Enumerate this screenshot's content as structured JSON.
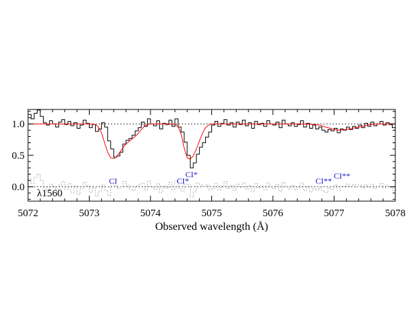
{
  "chart_data": {
    "type": "line",
    "xlabel": "Observed wavelength (Å)",
    "xlim": [
      5072,
      5078
    ],
    "ylim": [
      -0.23,
      1.23
    ],
    "xticks": [
      5072,
      5073,
      5074,
      5075,
      5076,
      5077,
      5078
    ],
    "yticks": [
      0.0,
      0.5,
      1.0
    ],
    "ytick_labels": [
      "0.0",
      "0.5",
      "1.0"
    ],
    "transition_label": "λ1560",
    "annotations": [
      {
        "text": "CI",
        "x": 5073.39,
        "y": 0.05
      },
      {
        "text": "CI*",
        "x": 5074.53,
        "y": 0.05
      },
      {
        "text": "CI*",
        "x": 5074.67,
        "y": 0.15
      },
      {
        "text": "CI**",
        "x": 5076.83,
        "y": 0.05
      },
      {
        "text": "CI**",
        "x": 5077.13,
        "y": 0.13
      }
    ],
    "series": [
      {
        "style": "histogram",
        "color": "#000000",
        "x": [
          5072.0,
          5072.05,
          5072.1,
          5072.15,
          5072.2,
          5072.25,
          5072.3,
          5072.35,
          5072.4,
          5072.45,
          5072.5,
          5072.55,
          5072.6,
          5072.65,
          5072.7,
          5072.75,
          5072.8,
          5072.85,
          5072.9,
          5072.95,
          5073.0,
          5073.05,
          5073.1,
          5073.15,
          5073.2,
          5073.25,
          5073.3,
          5073.35,
          5073.4,
          5073.45,
          5073.5,
          5073.55,
          5073.6,
          5073.65,
          5073.7,
          5073.75,
          5073.8,
          5073.85,
          5073.9,
          5073.95,
          5074.0,
          5074.05,
          5074.1,
          5074.15,
          5074.2,
          5074.25,
          5074.3,
          5074.35,
          5074.4,
          5074.45,
          5074.5,
          5074.55,
          5074.6,
          5074.65,
          5074.7,
          5074.75,
          5074.8,
          5074.85,
          5074.9,
          5074.95,
          5075.0,
          5075.05,
          5075.1,
          5075.15,
          5075.2,
          5075.25,
          5075.3,
          5075.35,
          5075.4,
          5075.45,
          5075.5,
          5075.55,
          5075.6,
          5075.65,
          5075.7,
          5075.75,
          5075.8,
          5075.85,
          5075.9,
          5075.95,
          5076.0,
          5076.05,
          5076.1,
          5076.15,
          5076.2,
          5076.25,
          5076.3,
          5076.35,
          5076.4,
          5076.45,
          5076.5,
          5076.55,
          5076.6,
          5076.65,
          5076.7,
          5076.75,
          5076.8,
          5076.85,
          5076.9,
          5076.95,
          5077.0,
          5077.05,
          5077.1,
          5077.15,
          5077.2,
          5077.25,
          5077.3,
          5077.35,
          5077.4,
          5077.45,
          5077.5,
          5077.55,
          5077.6,
          5077.65,
          5077.7,
          5077.75,
          5077.8,
          5077.85,
          5077.9,
          5077.95
        ],
        "y": [
          1.15,
          1.08,
          1.17,
          1.22,
          1.12,
          1.02,
          0.98,
          1.05,
          1.0,
          0.95,
          1.03,
          1.07,
          0.99,
          1.04,
          0.97,
          1.02,
          0.93,
          0.98,
          1.06,
          1.01,
          0.94,
          0.99,
          0.88,
          0.92,
          1.02,
          0.95,
          0.73,
          0.6,
          0.47,
          0.49,
          0.55,
          0.68,
          0.74,
          0.77,
          0.82,
          0.89,
          0.94,
          1.03,
          0.96,
          1.08,
          1.0,
          0.97,
          1.05,
          0.92,
          1.01,
          0.99,
          1.06,
          0.96,
          1.08,
          0.95,
          0.87,
          0.71,
          0.5,
          0.3,
          0.38,
          0.52,
          0.63,
          0.7,
          0.79,
          0.87,
          0.98,
          1.04,
          0.96,
          1.01,
          1.07,
          0.98,
          1.02,
          0.95,
          1.03,
          0.99,
          1.06,
          0.97,
          1.02,
          0.93,
          1.04,
          0.99,
          1.01,
          0.96,
          1.05,
          1.0,
          0.98,
          1.03,
          0.94,
          1.06,
          1.0,
          0.97,
          1.02,
          0.96,
          0.99,
          1.05,
          0.95,
          1.01,
          0.93,
          0.98,
          0.92,
          0.95,
          0.9,
          0.87,
          0.91,
          0.89,
          0.93,
          0.86,
          0.92,
          0.9,
          0.95,
          0.91,
          0.96,
          0.93,
          0.98,
          0.94,
          1.01,
          0.96,
          1.03,
          0.97,
          1.0,
          1.04,
          0.98,
          1.02,
          0.99,
          0.94
        ]
      },
      {
        "style": "line",
        "color": "#ff0000",
        "x": [
          5072.0,
          5072.2,
          5072.4,
          5072.6,
          5072.8,
          5073.0,
          5073.1,
          5073.15,
          5073.2,
          5073.25,
          5073.3,
          5073.35,
          5073.4,
          5073.45,
          5073.5,
          5073.55,
          5073.6,
          5073.65,
          5073.7,
          5073.75,
          5073.8,
          5073.85,
          5073.9,
          5073.95,
          5074.0,
          5074.1,
          5074.2,
          5074.3,
          5074.4,
          5074.45,
          5074.5,
          5074.55,
          5074.6,
          5074.65,
          5074.7,
          5074.75,
          5074.8,
          5074.85,
          5074.9,
          5074.95,
          5075.0,
          5075.2,
          5075.5,
          5076.0,
          5076.5,
          5076.7,
          5076.8,
          5076.9,
          5077.0,
          5077.1,
          5077.2,
          5077.3,
          5077.4,
          5077.5,
          5077.6,
          5077.7,
          5077.8,
          5078.0
        ],
        "y": [
          1.0,
          1.0,
          1.0,
          1.0,
          1.0,
          1.0,
          0.99,
          0.95,
          0.86,
          0.7,
          0.55,
          0.46,
          0.45,
          0.48,
          0.55,
          0.62,
          0.68,
          0.72,
          0.76,
          0.8,
          0.85,
          0.91,
          0.96,
          0.99,
          1.0,
          1.0,
          1.0,
          1.0,
          0.99,
          0.96,
          0.84,
          0.62,
          0.46,
          0.44,
          0.49,
          0.6,
          0.73,
          0.85,
          0.94,
          0.98,
          1.0,
          1.0,
          1.0,
          1.0,
          1.0,
          0.99,
          0.97,
          0.94,
          0.91,
          0.9,
          0.91,
          0.93,
          0.95,
          0.97,
          0.99,
          1.0,
          1.0,
          1.0
        ]
      },
      {
        "style": "histogram",
        "color": "#999999",
        "dashed": true,
        "x": [
          5072.0,
          5072.05,
          5072.1,
          5072.15,
          5072.2,
          5072.25,
          5072.3,
          5072.35,
          5072.4,
          5072.45,
          5072.5,
          5072.55,
          5072.6,
          5072.65,
          5072.7,
          5072.75,
          5072.8,
          5072.85,
          5072.9,
          5072.95,
          5073.0,
          5073.05,
          5073.1,
          5073.15,
          5073.2,
          5073.25,
          5073.3,
          5073.35,
          5073.4,
          5073.45,
          5073.5,
          5073.55,
          5073.6,
          5073.65,
          5073.7,
          5073.75,
          5073.8,
          5073.85,
          5073.9,
          5073.95,
          5074.0,
          5074.05,
          5074.1,
          5074.15,
          5074.2,
          5074.25,
          5074.3,
          5074.35,
          5074.4,
          5074.45,
          5074.5,
          5074.55,
          5074.6,
          5074.65,
          5074.7,
          5074.75,
          5074.8,
          5074.85,
          5074.9,
          5074.95,
          5075.0,
          5075.05,
          5075.1,
          5075.15,
          5075.2,
          5075.25,
          5075.3,
          5075.35,
          5075.4,
          5075.45,
          5075.5,
          5075.55,
          5075.6,
          5075.65,
          5075.7,
          5075.75,
          5075.8,
          5075.85,
          5075.9,
          5075.95,
          5076.0,
          5076.05,
          5076.1,
          5076.15,
          5076.2,
          5076.25,
          5076.3,
          5076.35,
          5076.4,
          5076.45,
          5076.5,
          5076.55,
          5076.6,
          5076.65,
          5076.7,
          5076.75,
          5076.8,
          5076.85,
          5076.9,
          5076.95,
          5077.0,
          5077.05,
          5077.1,
          5077.15,
          5077.2,
          5077.25,
          5077.3,
          5077.35,
          5077.4,
          5077.45,
          5077.5,
          5077.55,
          5077.6,
          5077.65,
          5077.7,
          5077.75,
          5077.8,
          5077.85,
          5077.9,
          5077.95
        ],
        "y": [
          0.12,
          0.05,
          0.15,
          0.2,
          0.1,
          -0.02,
          -0.06,
          0.04,
          0.0,
          -0.08,
          0.03,
          0.08,
          -0.04,
          0.05,
          -0.1,
          0.02,
          -0.12,
          -0.03,
          0.07,
          0.01,
          -0.09,
          -0.02,
          -0.15,
          -0.07,
          0.03,
          -0.06,
          -0.14,
          0.05,
          0.02,
          -0.03,
          0.0,
          0.08,
          0.02,
          -0.04,
          -0.06,
          0.01,
          0.04,
          0.06,
          -0.05,
          0.09,
          0.0,
          -0.04,
          0.05,
          -0.09,
          0.01,
          -0.02,
          0.07,
          -0.05,
          0.09,
          -0.03,
          -0.07,
          0.04,
          0.03,
          -0.16,
          -0.08,
          0.06,
          0.04,
          0.0,
          0.03,
          -0.05,
          -0.03,
          0.05,
          -0.05,
          0.01,
          0.08,
          -0.03,
          0.02,
          -0.06,
          0.04,
          -0.01,
          0.06,
          -0.04,
          0.02,
          -0.08,
          0.05,
          -0.02,
          0.01,
          -0.05,
          0.06,
          0.0,
          -0.03,
          0.04,
          -0.07,
          0.07,
          0.0,
          -0.04,
          0.02,
          -0.05,
          -0.01,
          0.06,
          -0.06,
          0.01,
          -0.08,
          -0.03,
          -0.05,
          -0.02,
          -0.07,
          -0.09,
          -0.02,
          -0.04,
          0.03,
          -0.06,
          0.01,
          0.0,
          0.04,
          0.0,
          0.04,
          0.0,
          0.03,
          -0.02,
          0.03,
          -0.01,
          0.04,
          -0.03,
          0.0,
          0.05,
          -0.02,
          0.02,
          -0.01,
          -0.06
        ]
      }
    ]
  }
}
